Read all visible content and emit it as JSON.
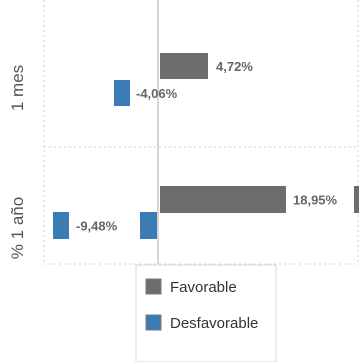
{
  "chart_data": {
    "type": "bar",
    "orientation": "horizontal",
    "categories": [
      "1 mes",
      "% 1 año"
    ],
    "series": [
      {
        "name": "Favorable",
        "values": [
          4.72,
          18.95
        ],
        "labels": [
          "4,72%",
          "18,95%"
        ]
      },
      {
        "name": "Desfavorable",
        "values": [
          -4.06,
          -9.48
        ],
        "labels": [
          "-4,06%",
          "-9,48%"
        ]
      }
    ],
    "xlim": [
      -15,
      30
    ],
    "grid": true,
    "legend_position": "bottom",
    "colors": {
      "favorable": "#6d6d6d",
      "desfavorable": "#3b7cb5",
      "grid": "#cfcfcf",
      "axis": "#c8c8c8",
      "label": "#666666"
    }
  },
  "legend": {
    "items": [
      {
        "label": "Favorable",
        "color": "#6d6d6d"
      },
      {
        "label": "Desfavorable",
        "color": "#3b7cb5"
      }
    ]
  }
}
